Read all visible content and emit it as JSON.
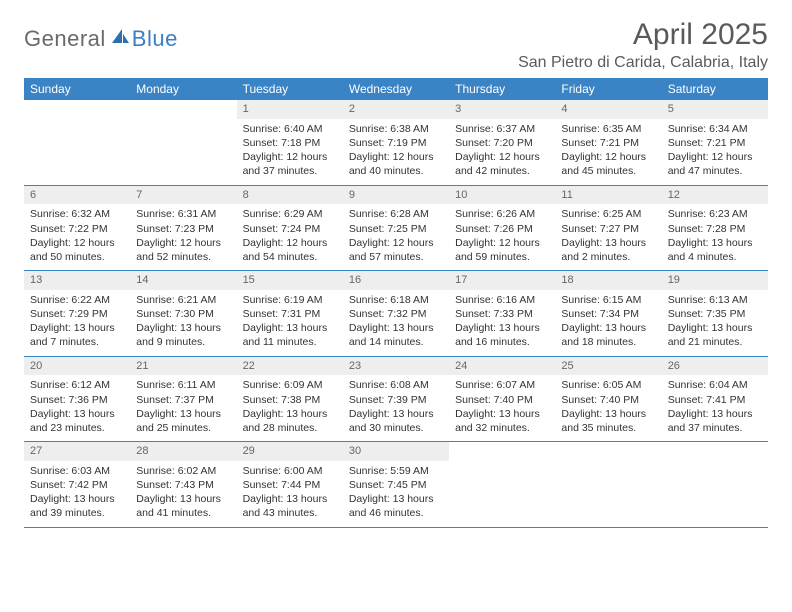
{
  "logo": {
    "text1": "General",
    "text2": "Blue"
  },
  "title": "April 2025",
  "location": "San Pietro di Carida, Calabria, Italy",
  "colors": {
    "header_bg": "#3a83c5",
    "header_text": "#ffffff",
    "daynum_bg": "#eeeeee",
    "daynum_text": "#666666",
    "body_text": "#333333",
    "rule": "#3a83c5",
    "logo_gray": "#6a6a6a",
    "logo_blue": "#3a7fc4"
  },
  "dow": [
    "Sunday",
    "Monday",
    "Tuesday",
    "Wednesday",
    "Thursday",
    "Friday",
    "Saturday"
  ],
  "weeks": [
    [
      {
        "n": "",
        "sr": "",
        "ss": "",
        "dl": ""
      },
      {
        "n": "",
        "sr": "",
        "ss": "",
        "dl": ""
      },
      {
        "n": "1",
        "sr": "Sunrise: 6:40 AM",
        "ss": "Sunset: 7:18 PM",
        "dl": "Daylight: 12 hours and 37 minutes."
      },
      {
        "n": "2",
        "sr": "Sunrise: 6:38 AM",
        "ss": "Sunset: 7:19 PM",
        "dl": "Daylight: 12 hours and 40 minutes."
      },
      {
        "n": "3",
        "sr": "Sunrise: 6:37 AM",
        "ss": "Sunset: 7:20 PM",
        "dl": "Daylight: 12 hours and 42 minutes."
      },
      {
        "n": "4",
        "sr": "Sunrise: 6:35 AM",
        "ss": "Sunset: 7:21 PM",
        "dl": "Daylight: 12 hours and 45 minutes."
      },
      {
        "n": "5",
        "sr": "Sunrise: 6:34 AM",
        "ss": "Sunset: 7:21 PM",
        "dl": "Daylight: 12 hours and 47 minutes."
      }
    ],
    [
      {
        "n": "6",
        "sr": "Sunrise: 6:32 AM",
        "ss": "Sunset: 7:22 PM",
        "dl": "Daylight: 12 hours and 50 minutes."
      },
      {
        "n": "7",
        "sr": "Sunrise: 6:31 AM",
        "ss": "Sunset: 7:23 PM",
        "dl": "Daylight: 12 hours and 52 minutes."
      },
      {
        "n": "8",
        "sr": "Sunrise: 6:29 AM",
        "ss": "Sunset: 7:24 PM",
        "dl": "Daylight: 12 hours and 54 minutes."
      },
      {
        "n": "9",
        "sr": "Sunrise: 6:28 AM",
        "ss": "Sunset: 7:25 PM",
        "dl": "Daylight: 12 hours and 57 minutes."
      },
      {
        "n": "10",
        "sr": "Sunrise: 6:26 AM",
        "ss": "Sunset: 7:26 PM",
        "dl": "Daylight: 12 hours and 59 minutes."
      },
      {
        "n": "11",
        "sr": "Sunrise: 6:25 AM",
        "ss": "Sunset: 7:27 PM",
        "dl": "Daylight: 13 hours and 2 minutes."
      },
      {
        "n": "12",
        "sr": "Sunrise: 6:23 AM",
        "ss": "Sunset: 7:28 PM",
        "dl": "Daylight: 13 hours and 4 minutes."
      }
    ],
    [
      {
        "n": "13",
        "sr": "Sunrise: 6:22 AM",
        "ss": "Sunset: 7:29 PM",
        "dl": "Daylight: 13 hours and 7 minutes."
      },
      {
        "n": "14",
        "sr": "Sunrise: 6:21 AM",
        "ss": "Sunset: 7:30 PM",
        "dl": "Daylight: 13 hours and 9 minutes."
      },
      {
        "n": "15",
        "sr": "Sunrise: 6:19 AM",
        "ss": "Sunset: 7:31 PM",
        "dl": "Daylight: 13 hours and 11 minutes."
      },
      {
        "n": "16",
        "sr": "Sunrise: 6:18 AM",
        "ss": "Sunset: 7:32 PM",
        "dl": "Daylight: 13 hours and 14 minutes."
      },
      {
        "n": "17",
        "sr": "Sunrise: 6:16 AM",
        "ss": "Sunset: 7:33 PM",
        "dl": "Daylight: 13 hours and 16 minutes."
      },
      {
        "n": "18",
        "sr": "Sunrise: 6:15 AM",
        "ss": "Sunset: 7:34 PM",
        "dl": "Daylight: 13 hours and 18 minutes."
      },
      {
        "n": "19",
        "sr": "Sunrise: 6:13 AM",
        "ss": "Sunset: 7:35 PM",
        "dl": "Daylight: 13 hours and 21 minutes."
      }
    ],
    [
      {
        "n": "20",
        "sr": "Sunrise: 6:12 AM",
        "ss": "Sunset: 7:36 PM",
        "dl": "Daylight: 13 hours and 23 minutes."
      },
      {
        "n": "21",
        "sr": "Sunrise: 6:11 AM",
        "ss": "Sunset: 7:37 PM",
        "dl": "Daylight: 13 hours and 25 minutes."
      },
      {
        "n": "22",
        "sr": "Sunrise: 6:09 AM",
        "ss": "Sunset: 7:38 PM",
        "dl": "Daylight: 13 hours and 28 minutes."
      },
      {
        "n": "23",
        "sr": "Sunrise: 6:08 AM",
        "ss": "Sunset: 7:39 PM",
        "dl": "Daylight: 13 hours and 30 minutes."
      },
      {
        "n": "24",
        "sr": "Sunrise: 6:07 AM",
        "ss": "Sunset: 7:40 PM",
        "dl": "Daylight: 13 hours and 32 minutes."
      },
      {
        "n": "25",
        "sr": "Sunrise: 6:05 AM",
        "ss": "Sunset: 7:40 PM",
        "dl": "Daylight: 13 hours and 35 minutes."
      },
      {
        "n": "26",
        "sr": "Sunrise: 6:04 AM",
        "ss": "Sunset: 7:41 PM",
        "dl": "Daylight: 13 hours and 37 minutes."
      }
    ],
    [
      {
        "n": "27",
        "sr": "Sunrise: 6:03 AM",
        "ss": "Sunset: 7:42 PM",
        "dl": "Daylight: 13 hours and 39 minutes."
      },
      {
        "n": "28",
        "sr": "Sunrise: 6:02 AM",
        "ss": "Sunset: 7:43 PM",
        "dl": "Daylight: 13 hours and 41 minutes."
      },
      {
        "n": "29",
        "sr": "Sunrise: 6:00 AM",
        "ss": "Sunset: 7:44 PM",
        "dl": "Daylight: 13 hours and 43 minutes."
      },
      {
        "n": "30",
        "sr": "Sunrise: 5:59 AM",
        "ss": "Sunset: 7:45 PM",
        "dl": "Daylight: 13 hours and 46 minutes."
      },
      {
        "n": "",
        "sr": "",
        "ss": "",
        "dl": ""
      },
      {
        "n": "",
        "sr": "",
        "ss": "",
        "dl": ""
      },
      {
        "n": "",
        "sr": "",
        "ss": "",
        "dl": ""
      }
    ]
  ]
}
